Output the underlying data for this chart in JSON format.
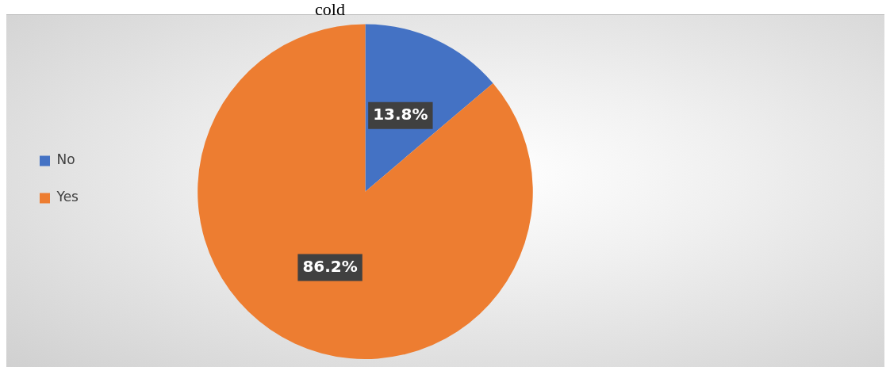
{
  "chart_data": {
    "type": "pie",
    "title": "cold",
    "categories": [
      "No",
      "Yes"
    ],
    "values": [
      13.8,
      86.2
    ],
    "colors": [
      "#4472c4",
      "#ed7d31"
    ],
    "value_labels": [
      "13.8%",
      "86.2%"
    ],
    "legend": "left"
  }
}
